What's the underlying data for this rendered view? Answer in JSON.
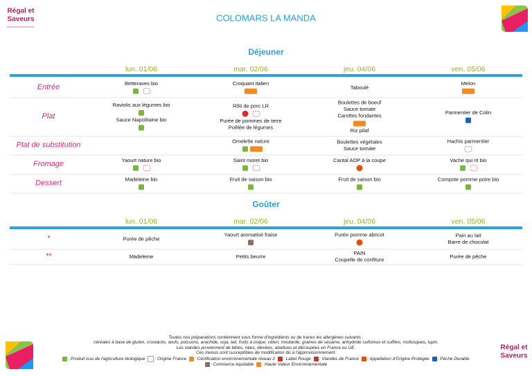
{
  "header": {
    "title": "COLOMARS LA MANDA",
    "logo": [
      "Régal et",
      "Saveurs"
    ]
  },
  "sections": [
    {
      "title": "Déjeuner",
      "days": [
        "lun. 01/06",
        "mar. 02/06",
        "jeu. 04/06",
        "ven. 05/06"
      ],
      "rows": [
        {
          "label": "Entrée",
          "cells": [
            [
              "Betteraves bio"
            ],
            [
              "Croquant italien"
            ],
            [
              "Taboulé"
            ],
            [
              "Melon"
            ]
          ]
        },
        {
          "label": "Plat",
          "cells": [
            [
              "Raviolis aux légumes bio",
              "Sauce Napolitaine bio"
            ],
            [
              "Rôti de porc LR",
              "Purée de pommes de terre",
              "Poêlée de légumes"
            ],
            [
              "Boulettes de boeuf",
              "Sauce tomate",
              "Carottes fondantes",
              "Riz pilaf"
            ],
            [
              "Parmentier de Colin"
            ]
          ]
        },
        {
          "label": "Plat de substitution",
          "cells": [
            [],
            [
              "Omelette nature"
            ],
            [
              "Boulettes végétales",
              "Sauce tomate"
            ],
            [
              "Hachis parmentier"
            ]
          ]
        },
        {
          "label": "Fromage",
          "cells": [
            [
              "Yaourt nature bio"
            ],
            [
              "Saint moret bio"
            ],
            [
              "Cantal AOP à la coupe"
            ],
            [
              "Vache qui rit bio"
            ]
          ]
        },
        {
          "label": "Dessert",
          "cells": [
            [
              "Madeleine bio"
            ],
            [
              "Fruit de saison bio"
            ],
            [
              "Fruit de saison bio"
            ],
            [
              "Compote pomme poire bio"
            ]
          ]
        }
      ]
    },
    {
      "title": "Goûter",
      "days": [
        "lun. 01/06",
        "mar. 02/06",
        "jeu. 04/06",
        "ven. 05/06"
      ],
      "rows": [
        {
          "label": "*",
          "cells": [
            [
              "Purée de pêche"
            ],
            [
              "Yaourt aromatisé fraise"
            ],
            [
              "Purée pomme abricot"
            ],
            [
              "Pain au lait",
              "Barre de chocolat"
            ]
          ]
        },
        {
          "label": "**",
          "cells": [
            [
              "Madeleine"
            ],
            [
              "Petits beurre"
            ],
            [
              "PAIN",
              "Coupelle de confiture"
            ],
            [
              "Purée de pêche"
            ]
          ]
        }
      ]
    }
  ],
  "footer": {
    "notes": [
      "Toutes nos préparations contiennent sous forme d'ingrédients ou de traces les allergènes suivants :",
      "céréales à base de gluten, crustacés, œufs, poissons, arachide, soja, lait, fruits à coque, céleri, moutarde, graines de sésame, anhydride sulfureux et sulfites, mollusques, lupin.",
      "Les viandes proviennent de bêtes, nées, élevées, abattues et découpées en France ou UE.",
      "Ces menus sont susceptibles de modification dû à l'approvisionnement."
    ],
    "legend": [
      ": Produit issu de l'agriculture biologique",
      ": Origine France",
      ": Certification environnementale niveau 2",
      ": Label Rouge",
      ": Viandes de France",
      ": Appellation d'Origine Protégée",
      ": Pêche Durable",
      ": Commerce équitable",
      ": Haute Valeur Environnementale"
    ]
  }
}
